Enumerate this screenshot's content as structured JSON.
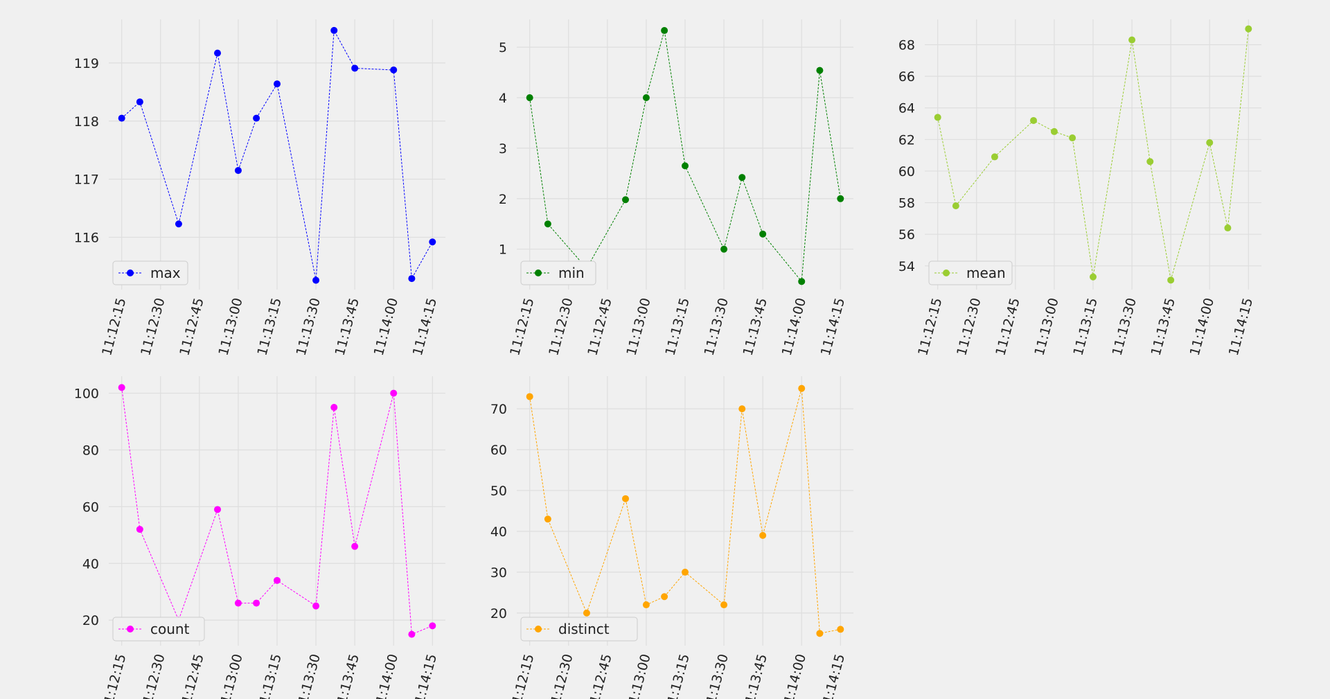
{
  "chart_data": [
    {
      "type": "line",
      "name": "max",
      "color": "#0000ff",
      "legend": "max",
      "x": [
        "11:12:15",
        "11:12:22",
        "11:12:37",
        "11:12:52",
        "11:13:00",
        "11:13:07",
        "11:13:15",
        "11:13:30",
        "11:13:37",
        "11:13:45",
        "11:14:00",
        "11:14:07",
        "11:14:15"
      ],
      "values": [
        118.05,
        118.33,
        116.23,
        119.17,
        117.15,
        118.05,
        118.64,
        115.26,
        119.56,
        118.91,
        118.88,
        115.29,
        115.92
      ],
      "ylim": [
        115.1,
        119.75
      ],
      "yticks": [
        116,
        117,
        118,
        119
      ],
      "xticks": [
        "11:12:15",
        "11:12:30",
        "11:12:45",
        "11:13:00",
        "11:13:15",
        "11:13:30",
        "11:13:45",
        "11:14:00",
        "11:14:15"
      ],
      "legend_position": "lower-left",
      "grid": true
    },
    {
      "type": "line",
      "name": "min",
      "color": "#008000",
      "legend": "min",
      "x": [
        "11:12:15",
        "11:12:22",
        "11:12:37",
        "11:12:52",
        "11:13:00",
        "11:13:07",
        "11:13:15",
        "11:13:30",
        "11:13:37",
        "11:13:45",
        "11:14:00",
        "11:14:07",
        "11:14:15"
      ],
      "values": [
        4.0,
        1.5,
        0.62,
        1.98,
        4.0,
        5.33,
        2.65,
        1.0,
        2.42,
        1.3,
        0.36,
        4.54,
        2.0
      ],
      "ylim": [
        0.2,
        5.55
      ],
      "yticks": [
        1,
        2,
        3,
        4,
        5
      ],
      "xticks": [
        "11:12:15",
        "11:12:30",
        "11:12:45",
        "11:13:00",
        "11:13:15",
        "11:13:30",
        "11:13:45",
        "11:14:00",
        "11:14:15"
      ],
      "legend_position": "lower-left",
      "grid": true
    },
    {
      "type": "line",
      "name": "mean",
      "color": "#9acd32",
      "legend": "mean",
      "x": [
        "11:12:15",
        "11:12:22",
        "11:12:37",
        "11:12:52",
        "11:13:00",
        "11:13:07",
        "11:13:15",
        "11:13:30",
        "11:13:37",
        "11:13:45",
        "11:14:00",
        "11:14:07",
        "11:14:15"
      ],
      "values": [
        63.4,
        57.8,
        60.9,
        63.2,
        62.5,
        62.1,
        53.3,
        68.3,
        60.6,
        53.1,
        61.8,
        56.4,
        69.0
      ],
      "ylim": [
        52.5,
        69.6
      ],
      "yticks": [
        54,
        56,
        58,
        60,
        62,
        64,
        66,
        68
      ],
      "xticks": [
        "11:12:15",
        "11:12:30",
        "11:12:45",
        "11:13:00",
        "11:13:15",
        "11:13:30",
        "11:13:45",
        "11:14:00",
        "11:14:15"
      ],
      "legend_position": "lower-left",
      "grid": true
    },
    {
      "type": "line",
      "name": "count",
      "color": "#ff00ff",
      "legend": "count",
      "x": [
        "11:12:15",
        "11:12:22",
        "11:12:37",
        "11:12:52",
        "11:13:00",
        "11:13:07",
        "11:13:15",
        "11:13:30",
        "11:13:37",
        "11:13:45",
        "11:14:00",
        "11:14:07",
        "11:14:15"
      ],
      "values": [
        102,
        52,
        20,
        59,
        26,
        26,
        34,
        25,
        95,
        46,
        100,
        15,
        18
      ],
      "ylim": [
        11,
        106
      ],
      "yticks": [
        20,
        40,
        60,
        80,
        100
      ],
      "xticks": [
        "11:12:15",
        "11:12:30",
        "11:12:45",
        "11:13:00",
        "11:13:15",
        "11:13:30",
        "11:13:45",
        "11:14:00",
        "11:14:15"
      ],
      "legend_position": "lower-left",
      "grid": true
    },
    {
      "type": "line",
      "name": "distinct",
      "color": "#ffa500",
      "legend": "distinct",
      "x": [
        "11:12:15",
        "11:12:22",
        "11:12:37",
        "11:12:52",
        "11:13:00",
        "11:13:07",
        "11:13:15",
        "11:13:30",
        "11:13:37",
        "11:13:45",
        "11:14:00",
        "11:14:07",
        "11:14:15"
      ],
      "values": [
        73,
        43,
        20,
        48,
        22,
        24,
        30,
        22,
        70,
        39,
        75,
        15,
        16
      ],
      "ylim": [
        12,
        78
      ],
      "yticks": [
        20,
        30,
        40,
        50,
        60,
        70
      ],
      "xticks": [
        "11:12:15",
        "11:12:30",
        "11:12:45",
        "11:13:00",
        "11:13:15",
        "11:13:30",
        "11:13:45",
        "11:14:00",
        "11:14:15"
      ],
      "legend_position": "lower-left",
      "grid": true
    }
  ]
}
